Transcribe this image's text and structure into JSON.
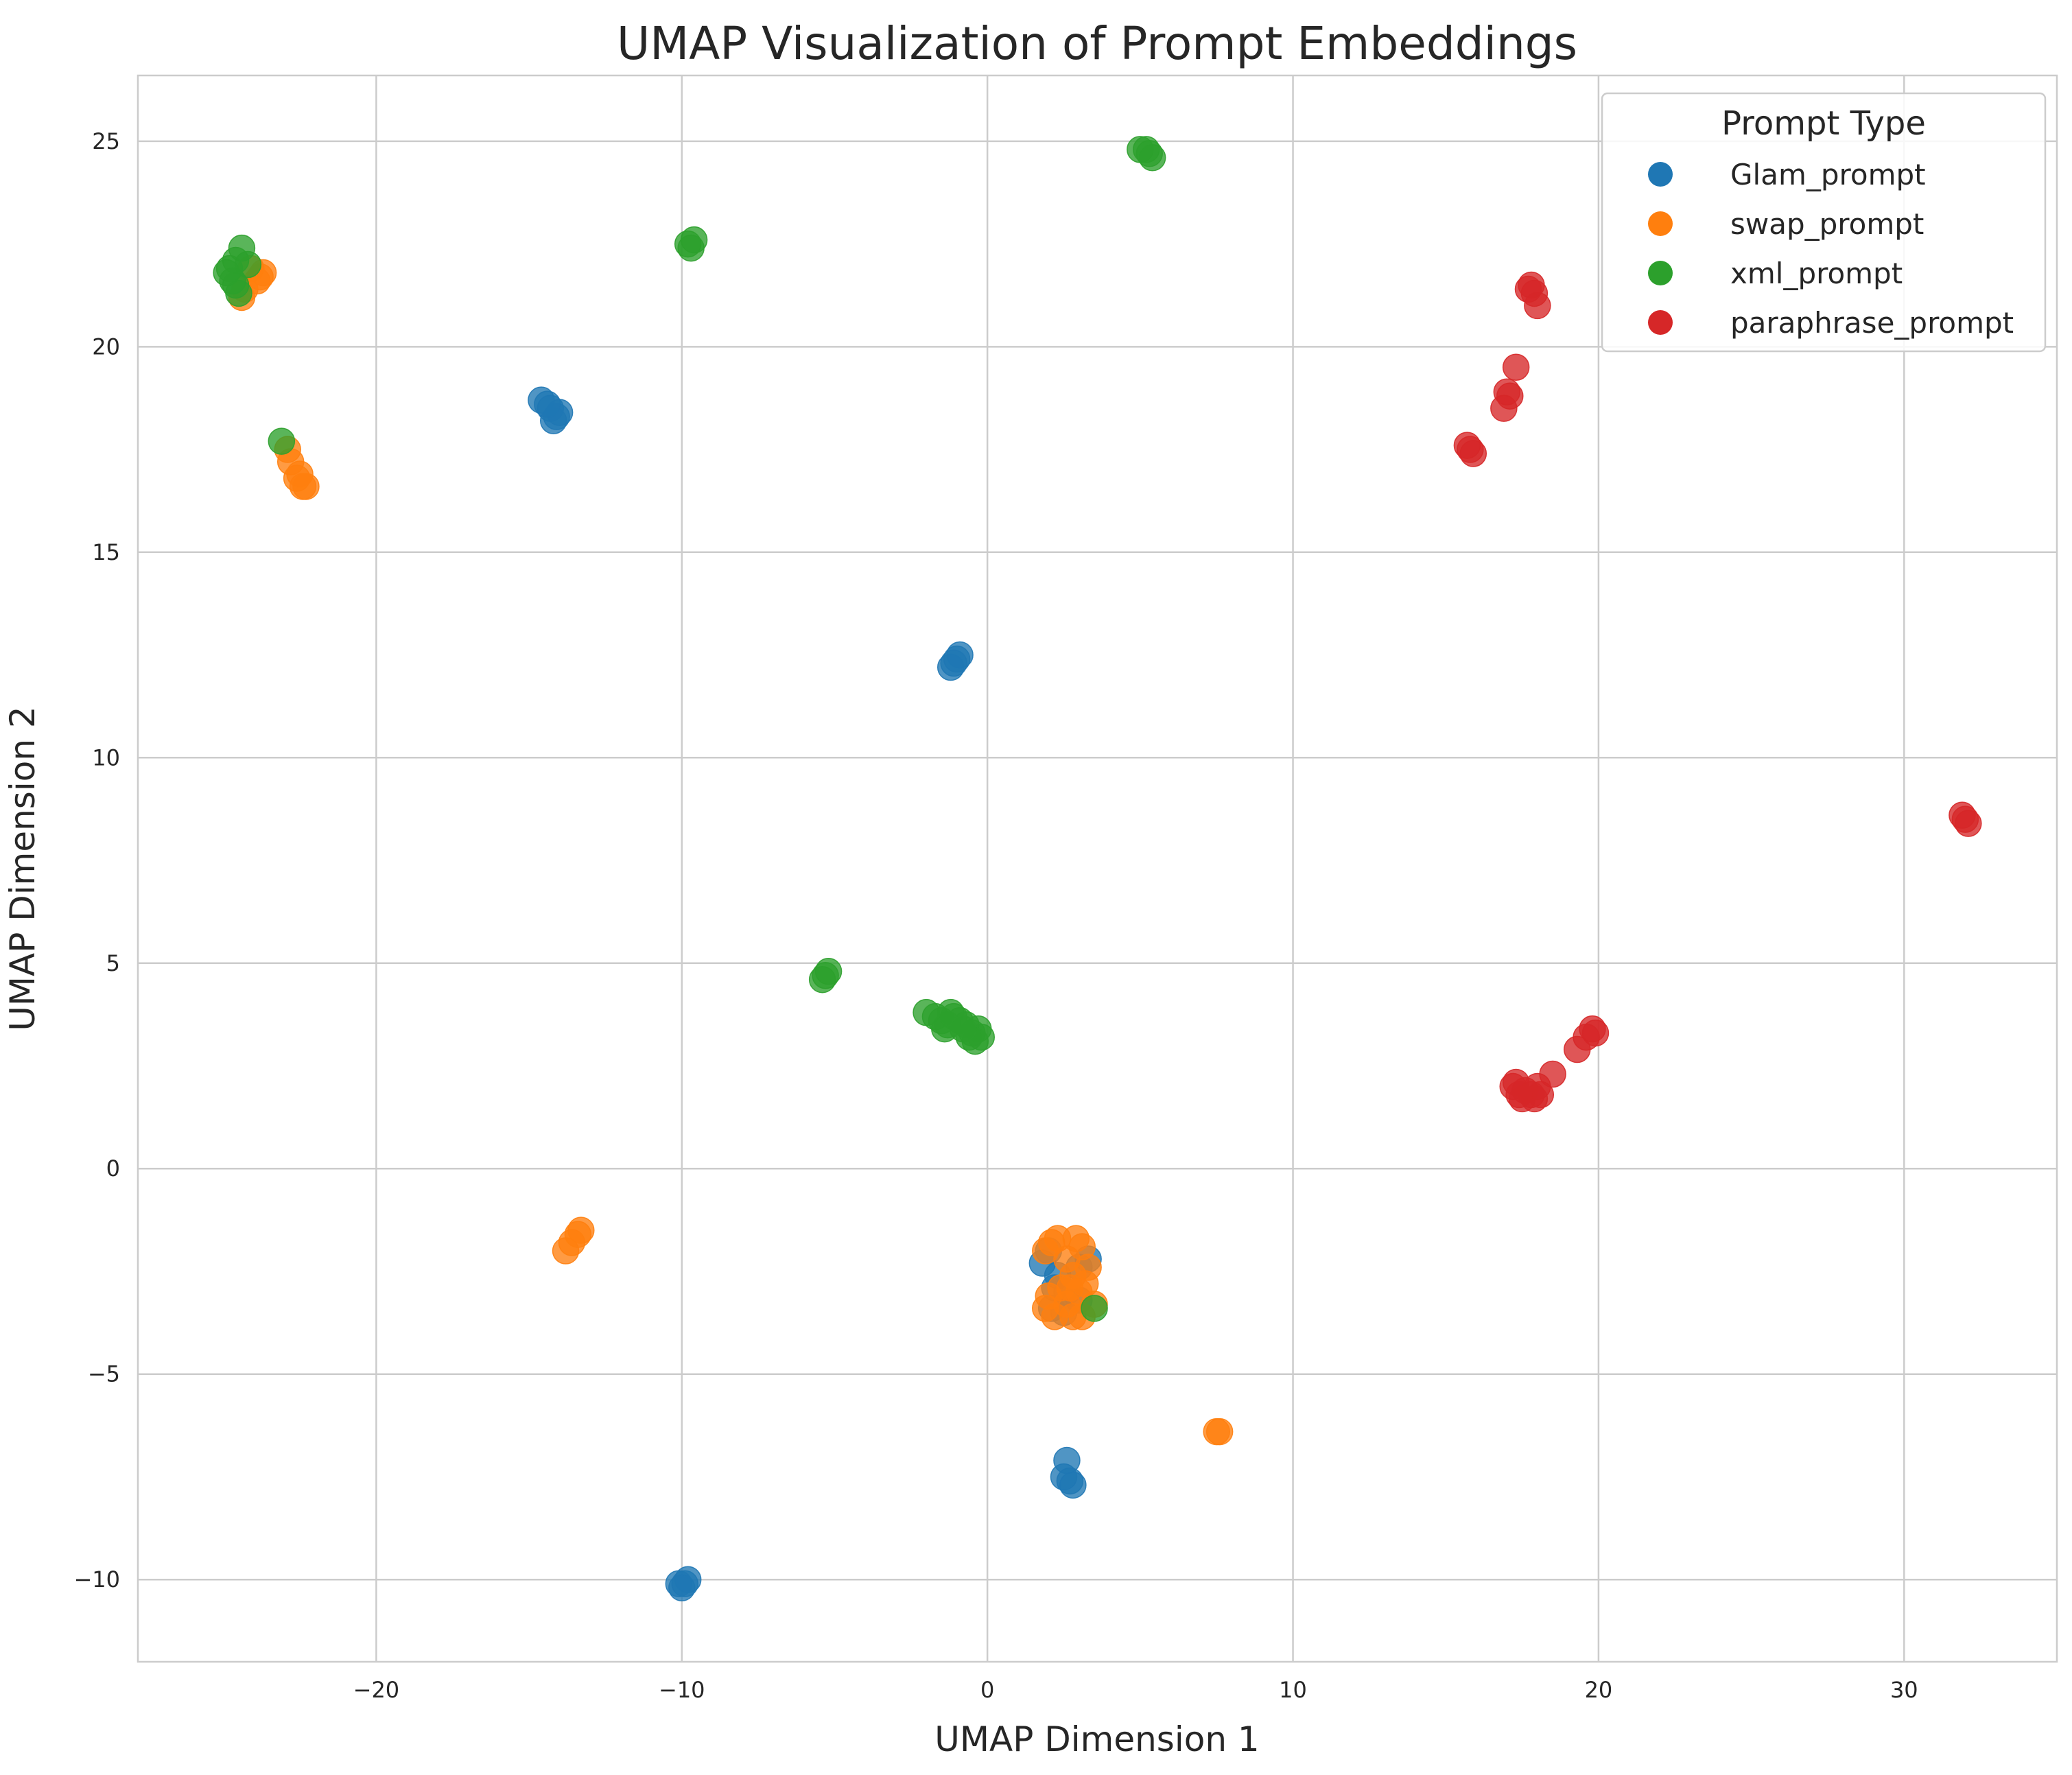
{
  "chart_data": {
    "type": "scatter",
    "title": "UMAP Visualization of Prompt Embeddings",
    "xlabel": "UMAP Dimension 1",
    "ylabel": "UMAP Dimension 2",
    "xlim": [
      -27.8,
      35.0
    ],
    "ylim": [
      -12.0,
      26.6
    ],
    "x_ticks": [
      -20,
      -10,
      0,
      10,
      20,
      30
    ],
    "y_ticks": [
      -10,
      -5,
      0,
      5,
      10,
      15,
      20,
      25
    ],
    "x_tick_labels": [
      "−20",
      "−10",
      "0",
      "10",
      "20",
      "30"
    ],
    "y_tick_labels": [
      "−10",
      "−5",
      "0",
      "5",
      "10",
      "15",
      "20",
      "25"
    ],
    "grid": true,
    "legend": {
      "title": "Prompt Type",
      "position": "top-right"
    },
    "series": [
      {
        "name": "Glam_prompt",
        "color": "#1f77b4",
        "points": [
          [
            -14.6,
            18.7
          ],
          [
            -14.3,
            18.5
          ],
          [
            -14.0,
            18.4
          ],
          [
            -14.1,
            18.3
          ],
          [
            -14.2,
            18.2
          ],
          [
            -14.4,
            18.6
          ],
          [
            -1.2,
            12.2
          ],
          [
            -1.0,
            12.4
          ],
          [
            -0.9,
            12.5
          ],
          [
            -1.1,
            12.3
          ],
          [
            1.8,
            -2.3
          ],
          [
            2.0,
            -2.0
          ],
          [
            2.3,
            -2.6
          ],
          [
            2.6,
            -3.0
          ],
          [
            3.0,
            -2.4
          ],
          [
            3.3,
            -2.2
          ],
          [
            2.1,
            -3.4
          ],
          [
            2.5,
            -3.5
          ],
          [
            3.0,
            -3.2
          ],
          [
            2.2,
            -2.9
          ],
          [
            2.6,
            -7.1
          ],
          [
            2.5,
            -7.5
          ],
          [
            2.7,
            -7.6
          ],
          [
            2.8,
            -7.7
          ],
          [
            -10.1,
            -10.1
          ],
          [
            -9.9,
            -10.1
          ],
          [
            -9.8,
            -10.0
          ],
          [
            -10.0,
            -10.2
          ]
        ]
      },
      {
        "name": "swap_prompt",
        "color": "#ff7f0e",
        "points": [
          [
            -24.4,
            21.2
          ],
          [
            -23.9,
            21.6
          ],
          [
            -23.7,
            21.8
          ],
          [
            -23.8,
            21.7
          ],
          [
            -24.1,
            21.9
          ],
          [
            -24.3,
            21.4
          ],
          [
            -22.8,
            17.2
          ],
          [
            -22.6,
            16.8
          ],
          [
            -22.4,
            16.6
          ],
          [
            -22.3,
            16.6
          ],
          [
            -22.9,
            17.5
          ],
          [
            -22.5,
            16.9
          ],
          [
            -13.8,
            -2.0
          ],
          [
            -13.6,
            -1.8
          ],
          [
            -13.4,
            -1.6
          ],
          [
            -13.3,
            -1.5
          ],
          [
            1.9,
            -2.0
          ],
          [
            2.1,
            -1.8
          ],
          [
            2.3,
            -1.7
          ],
          [
            2.6,
            -2.2
          ],
          [
            2.9,
            -1.7
          ],
          [
            3.1,
            -1.9
          ],
          [
            3.3,
            -2.4
          ],
          [
            2.8,
            -2.6
          ],
          [
            2.4,
            -2.9
          ],
          [
            2.0,
            -3.1
          ],
          [
            1.9,
            -3.4
          ],
          [
            2.2,
            -3.6
          ],
          [
            2.6,
            -3.3
          ],
          [
            2.8,
            -3.6
          ],
          [
            3.0,
            -3.0
          ],
          [
            3.2,
            -2.8
          ],
          [
            3.5,
            -3.3
          ],
          [
            2.7,
            -2.9
          ],
          [
            3.1,
            -3.6
          ],
          [
            7.5,
            -6.4
          ],
          [
            7.6,
            -6.4
          ]
        ]
      },
      {
        "name": "xml_prompt",
        "color": "#2ca02c",
        "points": [
          [
            -24.9,
            21.8
          ],
          [
            -24.7,
            21.6
          ],
          [
            -24.5,
            21.3
          ],
          [
            -24.6,
            22.1
          ],
          [
            -24.4,
            22.4
          ],
          [
            -24.2,
            22.0
          ],
          [
            -24.8,
            21.9
          ],
          [
            -24.6,
            21.5
          ],
          [
            -23.1,
            17.7
          ],
          [
            -9.8,
            22.5
          ],
          [
            -9.6,
            22.6
          ],
          [
            -9.7,
            22.4
          ],
          [
            5.0,
            24.8
          ],
          [
            5.2,
            24.8
          ],
          [
            5.4,
            24.6
          ],
          [
            5.3,
            24.7
          ],
          [
            -5.4,
            4.6
          ],
          [
            -5.2,
            4.8
          ],
          [
            -5.3,
            4.7
          ],
          [
            -2.0,
            3.8
          ],
          [
            -1.7,
            3.7
          ],
          [
            -1.5,
            3.6
          ],
          [
            -1.3,
            3.5
          ],
          [
            -1.1,
            3.7
          ],
          [
            -0.9,
            3.6
          ],
          [
            -0.7,
            3.5
          ],
          [
            -0.5,
            3.3
          ],
          [
            -0.3,
            3.4
          ],
          [
            -0.2,
            3.2
          ],
          [
            -0.4,
            3.1
          ],
          [
            -0.6,
            3.2
          ],
          [
            -1.4,
            3.4
          ],
          [
            -1.2,
            3.8
          ],
          [
            -0.8,
            3.4
          ],
          [
            3.5,
            -3.4
          ]
        ]
      },
      {
        "name": "paraphrase_prompt",
        "color": "#d62728",
        "points": [
          [
            17.8,
            21.5
          ],
          [
            17.9,
            21.3
          ],
          [
            18.0,
            21.0
          ],
          [
            17.7,
            21.4
          ],
          [
            17.3,
            19.5
          ],
          [
            17.0,
            18.9
          ],
          [
            17.1,
            18.8
          ],
          [
            16.9,
            18.5
          ],
          [
            15.7,
            17.6
          ],
          [
            15.9,
            17.4
          ],
          [
            15.8,
            17.5
          ],
          [
            31.9,
            8.6
          ],
          [
            32.1,
            8.4
          ],
          [
            32.0,
            8.5
          ],
          [
            19.8,
            3.4
          ],
          [
            19.6,
            3.2
          ],
          [
            19.9,
            3.3
          ],
          [
            19.3,
            2.9
          ],
          [
            18.5,
            2.3
          ],
          [
            18.0,
            2.0
          ],
          [
            17.8,
            1.8
          ],
          [
            17.5,
            1.7
          ],
          [
            17.2,
            2.0
          ],
          [
            17.3,
            2.1
          ],
          [
            17.6,
            1.9
          ],
          [
            17.9,
            1.7
          ],
          [
            18.1,
            1.8
          ],
          [
            17.4,
            1.8
          ]
        ]
      }
    ]
  }
}
